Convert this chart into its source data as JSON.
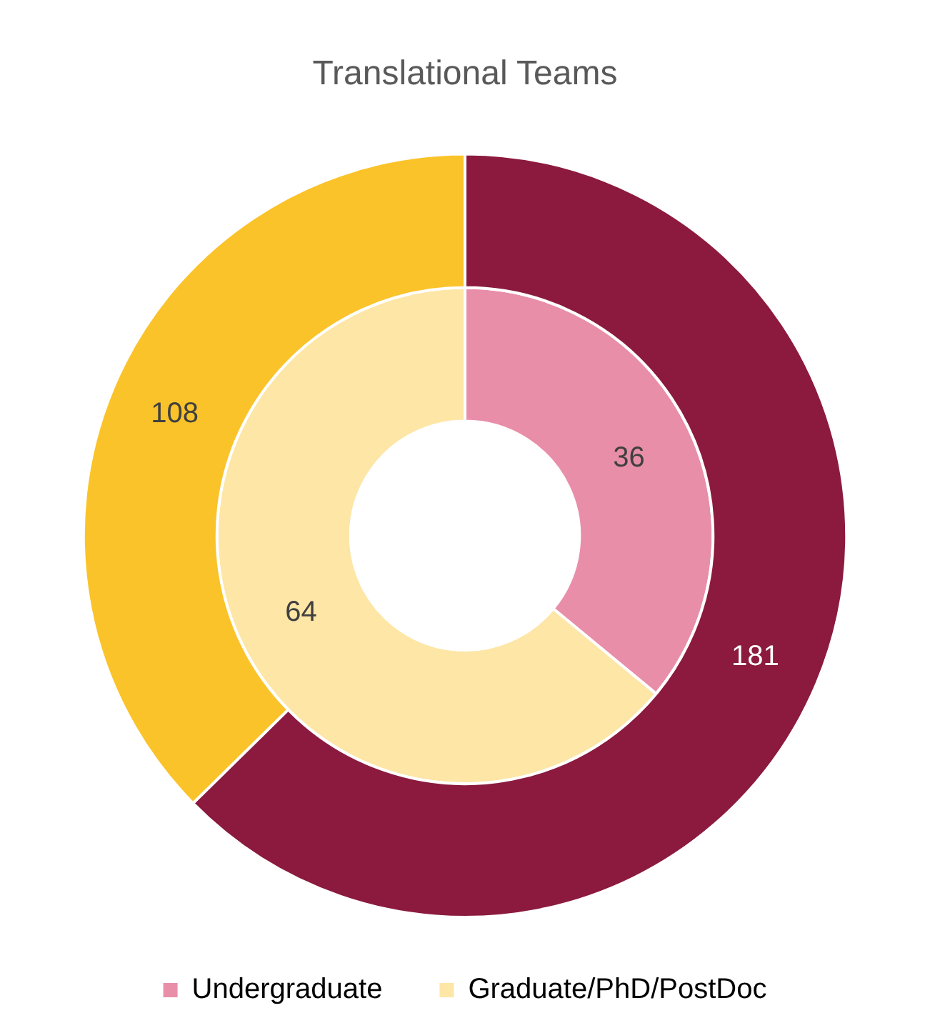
{
  "chart_data": {
    "type": "donut",
    "title": "Translational Teams",
    "categories": [
      "Undergraduate",
      "Graduate/PhD/PostDoc"
    ],
    "series": [
      {
        "values": [
          181,
          108
        ],
        "colors": [
          "#8b1a3e",
          "#fbc32a"
        ]
      },
      {
        "values": [
          36,
          64
        ],
        "colors": [
          "#e98ea9",
          "#fde6a6"
        ]
      }
    ],
    "data_labels": true,
    "legend": "bottom"
  }
}
